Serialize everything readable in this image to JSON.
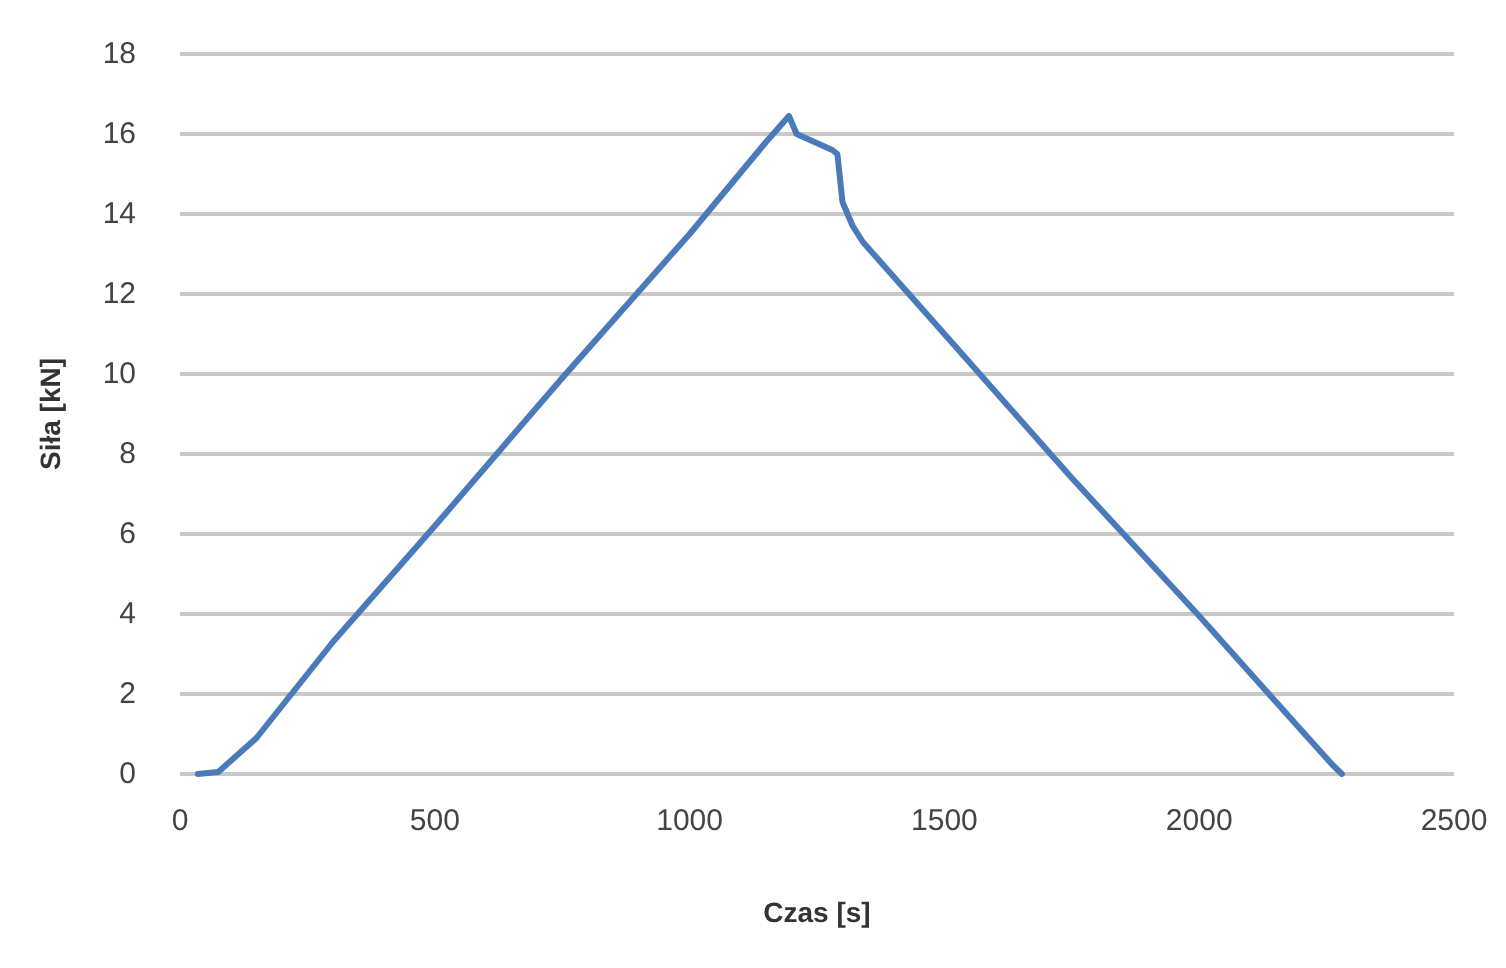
{
  "chart_data": {
    "type": "line",
    "xlabel": "Czas [s]",
    "ylabel": "Siła [kN]",
    "x": [
      35,
      75,
      150,
      300,
      500,
      750,
      1000,
      1150,
      1195,
      1210,
      1280,
      1290,
      1300,
      1320,
      1340,
      1500,
      1750,
      2000,
      2200,
      2260,
      2280
    ],
    "series": [
      {
        "color": "#4a7ab8",
        "values": [
          0,
          0.05,
          0.9,
          3.3,
          6.2,
          9.9,
          13.5,
          15.8,
          16.45,
          16.0,
          15.6,
          15.5,
          14.3,
          13.7,
          13.3,
          11.0,
          7.4,
          3.95,
          1.1,
          0.25,
          0
        ]
      }
    ],
    "xlim": [
      0,
      2500
    ],
    "xticks": [
      0,
      500,
      1000,
      1500,
      2000,
      2500
    ],
    "ylim": [
      0,
      18
    ],
    "yticks": [
      0,
      2,
      4,
      6,
      8,
      10,
      12,
      14,
      16,
      18
    ],
    "grid": "y",
    "marker": "none",
    "line_style": "solid"
  }
}
